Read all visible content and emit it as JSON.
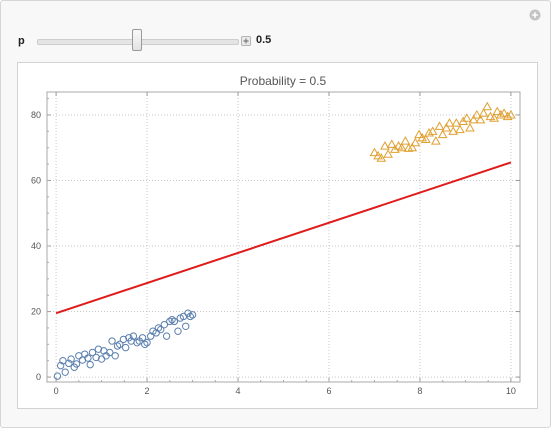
{
  "control": {
    "label": "p",
    "value": "0.5",
    "slider_fraction": 0.5,
    "close_icon": "close-circle-icon",
    "plus_icon": "plus-icon"
  },
  "chart_data": {
    "type": "scatter",
    "title": "Probability = 0.5",
    "xlabel": "",
    "ylabel": "",
    "xlim": [
      -0.2,
      10.2
    ],
    "ylim": [
      -1.5,
      87
    ],
    "xticks": [
      "0",
      "2",
      "4",
      "6",
      "8",
      "10"
    ],
    "yticks": [
      "0",
      "20",
      "40",
      "60",
      "80"
    ],
    "grid": true,
    "colors": {
      "circles": "#5b7fae",
      "triangles": "#e0a030",
      "line": "#e01b1b"
    },
    "series": [
      {
        "marker": "circle",
        "x": [
          0.03,
          0.1,
          0.15,
          0.2,
          0.28,
          0.33,
          0.4,
          0.45,
          0.5,
          0.58,
          0.63,
          0.7,
          0.75,
          0.8,
          0.88,
          0.93,
          1.0,
          1.05,
          1.1,
          1.18,
          1.23,
          1.3,
          1.35,
          1.4,
          1.48,
          1.53,
          1.6,
          1.65,
          1.7,
          1.78,
          1.83,
          1.9,
          1.95,
          2.0,
          2.08,
          2.13,
          2.2,
          2.25,
          2.3,
          2.38,
          2.43,
          2.5,
          2.55,
          2.6,
          2.68,
          2.73,
          2.8,
          2.85,
          2.9,
          2.95,
          3.0
        ],
        "y": [
          0.3,
          3.5,
          5.0,
          1.5,
          4.2,
          5.5,
          3.0,
          4.0,
          6.5,
          5.2,
          7.0,
          5.8,
          3.8,
          7.5,
          6.0,
          8.5,
          5.5,
          8.0,
          6.5,
          7.5,
          11.0,
          6.5,
          9.5,
          10.0,
          11.5,
          9.0,
          12.0,
          11.0,
          12.5,
          10.5,
          11.0,
          12.0,
          10.0,
          10.5,
          12.5,
          14.0,
          13.5,
          15.0,
          14.5,
          16.0,
          12.5,
          17.0,
          17.5,
          17.0,
          14.0,
          18.0,
          18.5,
          15.5,
          19.5,
          18.5,
          19.0
        ]
      },
      {
        "marker": "triangle",
        "x": [
          7.0,
          7.08,
          7.15,
          7.23,
          7.3,
          7.38,
          7.45,
          7.53,
          7.6,
          7.68,
          7.75,
          7.83,
          7.9,
          7.98,
          8.05,
          8.13,
          8.2,
          8.28,
          8.35,
          8.43,
          8.5,
          8.58,
          8.65,
          8.73,
          8.8,
          8.88,
          8.95,
          9.03,
          9.1,
          9.18,
          9.25,
          9.33,
          9.4,
          9.48,
          9.55,
          9.63,
          9.7,
          9.78,
          9.85,
          9.93,
          10.0
        ],
        "y": [
          68.5,
          67.5,
          66.8,
          70.5,
          68.0,
          71.0,
          69.5,
          70.5,
          70.0,
          72.0,
          69.8,
          70.0,
          71.5,
          74.0,
          73.0,
          72.5,
          74.5,
          75.0,
          72.0,
          76.5,
          74.0,
          76.0,
          77.5,
          75.0,
          77.5,
          75.5,
          78.0,
          79.0,
          76.0,
          78.5,
          80.0,
          78.5,
          80.5,
          82.5,
          79.5,
          79.0,
          81.0,
          80.0,
          80.5,
          79.5,
          80.0
        ]
      },
      {
        "marker": "line",
        "x": [
          0,
          10
        ],
        "y": [
          19.5,
          65.5
        ]
      }
    ]
  }
}
